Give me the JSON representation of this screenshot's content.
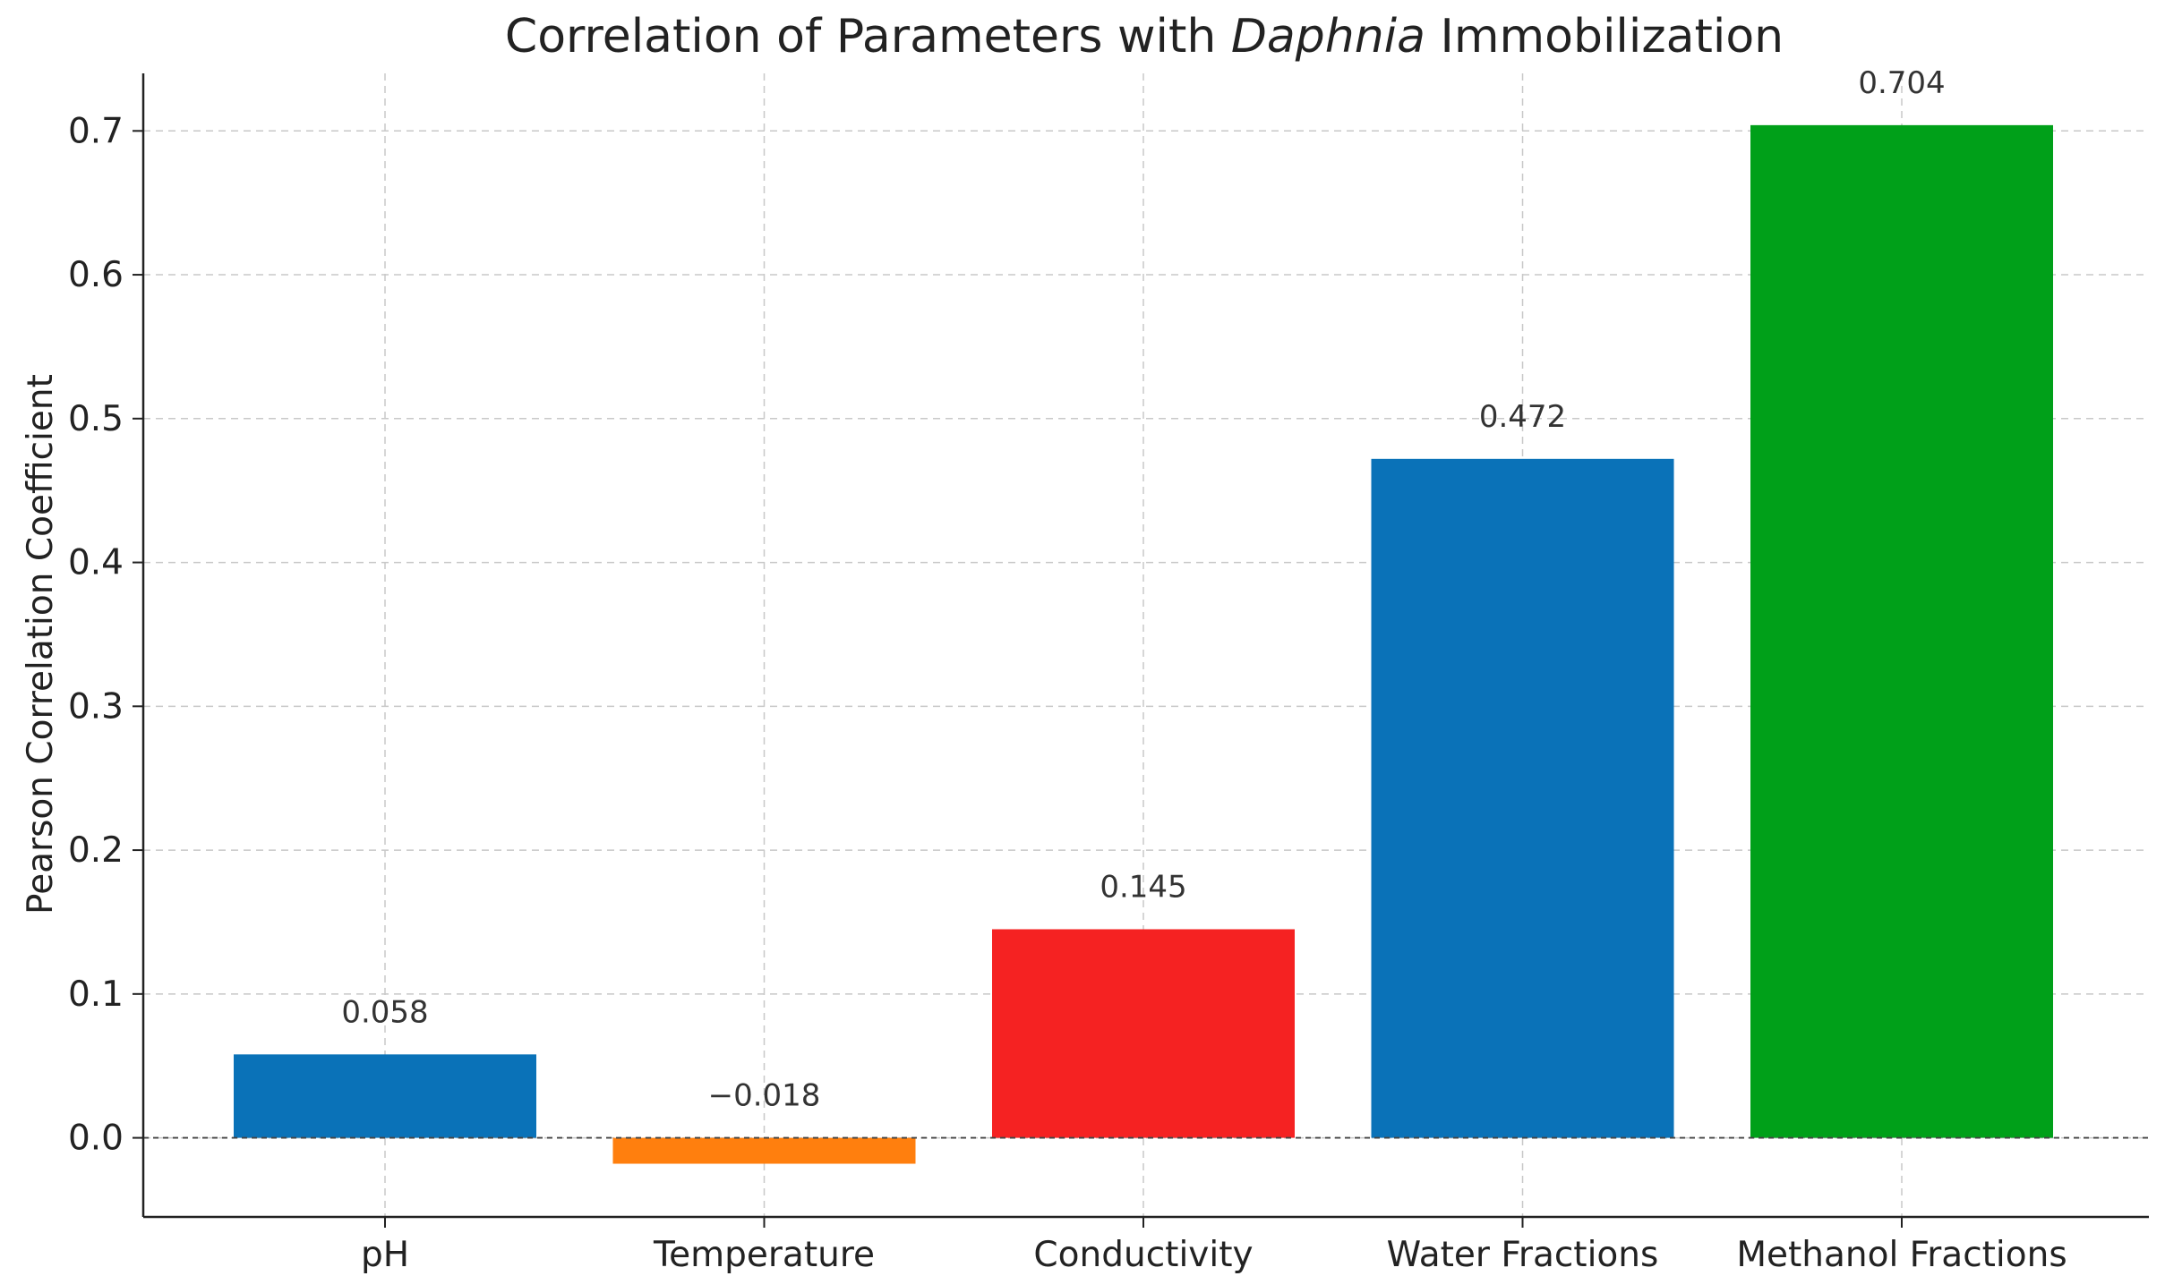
{
  "chart_data": {
    "type": "bar",
    "title": {
      "prefix": "Correlation of Parameters with ",
      "italic": "Daphnia",
      "suffix": " Immobilization"
    },
    "xlabel": "",
    "ylabel": "Pearson Correlation Coefficient",
    "categories": [
      "pH",
      "Temperature",
      "Conductivity",
      "Water Fractions",
      "Methanol Fractions"
    ],
    "values": [
      0.058,
      -0.018,
      0.145,
      0.472,
      0.704
    ],
    "value_labels": [
      "0.058",
      "−0.018",
      "0.145",
      "0.472",
      "0.704"
    ],
    "colors": [
      "#0a72b8",
      "#ff7f0e",
      "#f52222",
      "#0a72b8",
      "#00a019"
    ],
    "ylim": [
      -0.055,
      0.74
    ],
    "yticks": [
      0.0,
      0.1,
      0.2,
      0.3,
      0.4,
      0.5,
      0.6,
      0.7
    ],
    "ytick_labels": [
      "0.0",
      "0.1",
      "0.2",
      "0.3",
      "0.4",
      "0.5",
      "0.6",
      "0.7"
    ],
    "grid": true,
    "zero_reference_line": true
  }
}
